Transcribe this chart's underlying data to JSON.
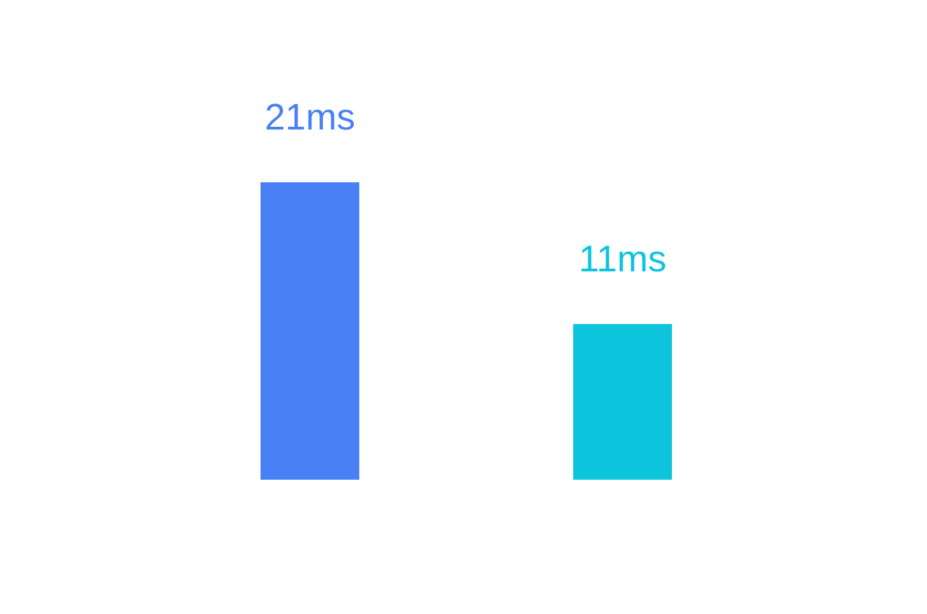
{
  "chart_data": {
    "type": "bar",
    "categories": [
      null,
      null
    ],
    "values": [
      21,
      11
    ],
    "colors": [
      "#4a80f5",
      "#0cc5dc"
    ],
    "value_labels": [
      "21ms",
      "11ms"
    ]
  }
}
